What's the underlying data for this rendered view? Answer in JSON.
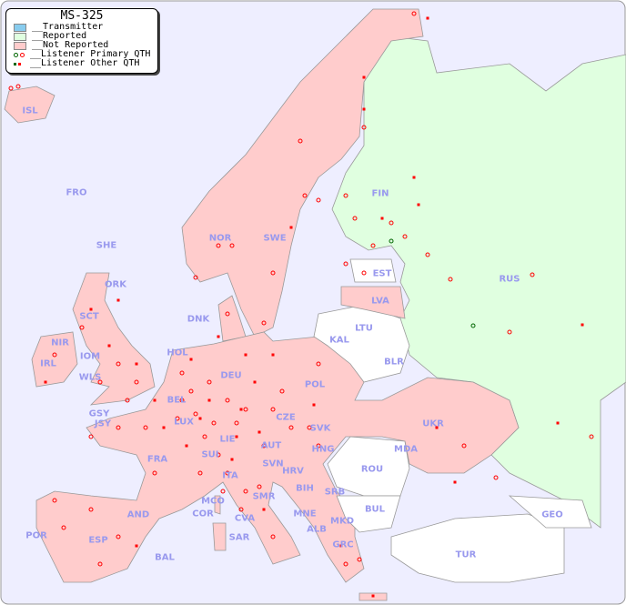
{
  "legend": {
    "title": "MS-325",
    "items": [
      {
        "label": "__Transmitter",
        "color": "#88ccee"
      },
      {
        "label": "__Reported",
        "color": "#e0ffe0"
      },
      {
        "label": "__Not Reported",
        "color": "#ffcccc"
      },
      {
        "label": "__Listener Primary QTH",
        "colors": [
          "#006600",
          "#ff0000"
        ]
      },
      {
        "label": "__Listener Other QTH",
        "colors": [
          "#006600",
          "#ff0000"
        ]
      }
    ]
  },
  "colors": {
    "sea": "#eeeeff",
    "reported": "#e0ffe0",
    "not_reported": "#ffcccc",
    "other": "#ffffff",
    "border": "#999999",
    "listener": "#ff0000",
    "listener_reported": "#006600",
    "label": "#9999ee"
  },
  "country_labels": [
    "ISL",
    "FRO",
    "SHE",
    "ORK",
    "NOR",
    "SWE",
    "FIN",
    "EST",
    "RUS",
    "LVA",
    "LTU",
    "KAL",
    "BLR",
    "DNK",
    "HOL",
    "DEU",
    "POL",
    "UKR",
    "MDA",
    "IRL",
    "SCT",
    "NIR",
    "IOM",
    "WLS",
    "GSY",
    "JSY",
    "LUX",
    "BEL",
    "FRA",
    "SUI",
    "LIE",
    "AUT",
    "CZE",
    "SVK",
    "HNG",
    "ROU",
    "SVN",
    "HRV",
    "BIH",
    "SRB",
    "MNE",
    "ALB",
    "MKD",
    "BUL",
    "GRC",
    "TUR",
    "GEO",
    "ITA",
    "SMR",
    "MCO",
    "COR",
    "CVA",
    "SAR",
    "ESP",
    "POR",
    "AND",
    "BAL"
  ]
}
